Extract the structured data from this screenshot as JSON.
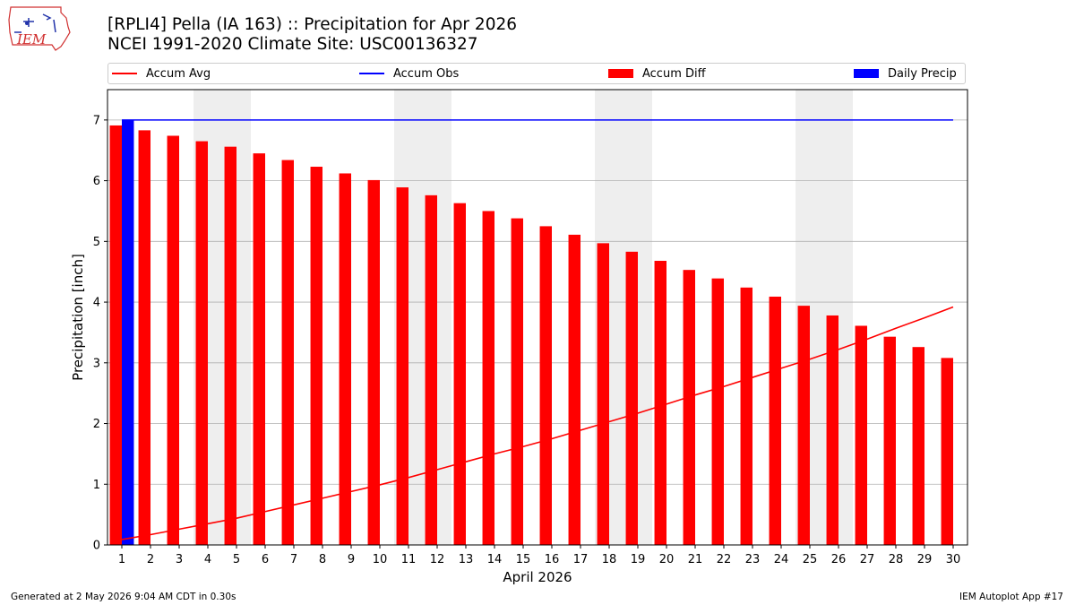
{
  "title_line1": "[RPLI4] Pella (IA 163) :: Precipitation for Apr 2026",
  "title_line2": "NCEI 1991-2020 Climate Site: USC00136327",
  "logo_text": "IEM",
  "footer_left": "Generated at 2 May 2026 9:04 AM CDT in 0.30s",
  "footer_right": "IEM Autoplot App #17",
  "legend": [
    {
      "label": "Accum Avg",
      "color": "#ff0000",
      "kind": "line"
    },
    {
      "label": "Accum Obs",
      "color": "#0000ff",
      "kind": "line"
    },
    {
      "label": "Accum Diff",
      "color": "#ff0000",
      "kind": "box"
    },
    {
      "label": "Daily Precip",
      "color": "#0000ff",
      "kind": "box"
    }
  ],
  "chart_data": {
    "type": "bar",
    "xlabel": "April 2026",
    "ylabel": "Precipitation [inch]",
    "xlim": [
      0.5,
      30.5
    ],
    "ylim": [
      0,
      7.5
    ],
    "yticks": [
      0,
      1,
      2,
      3,
      4,
      5,
      6,
      7
    ],
    "grid": true,
    "legend_position": "top",
    "weekend_shading": [
      [
        3.5,
        5.5
      ],
      [
        10.5,
        12.5
      ],
      [
        17.5,
        19.5
      ],
      [
        24.5,
        26.5
      ]
    ],
    "shade_color": "#eeeeee",
    "days": [
      1,
      2,
      3,
      4,
      5,
      6,
      7,
      8,
      9,
      10,
      11,
      12,
      13,
      14,
      15,
      16,
      17,
      18,
      19,
      20,
      21,
      22,
      23,
      24,
      25,
      26,
      27,
      28,
      29,
      30
    ],
    "series": [
      {
        "name": "Accum Avg",
        "kind": "line",
        "color": "#ff0000",
        "values": [
          0.09,
          0.17,
          0.26,
          0.35,
          0.44,
          0.55,
          0.66,
          0.77,
          0.88,
          0.99,
          1.11,
          1.24,
          1.37,
          1.5,
          1.62,
          1.75,
          1.89,
          2.03,
          2.17,
          2.32,
          2.47,
          2.61,
          2.76,
          2.91,
          3.06,
          3.22,
          3.39,
          3.57,
          3.74,
          3.92
        ]
      },
      {
        "name": "Accum Obs",
        "kind": "line",
        "color": "#0000ff",
        "values": [
          7.0,
          7.0,
          7.0,
          7.0,
          7.0,
          7.0,
          7.0,
          7.0,
          7.0,
          7.0,
          7.0,
          7.0,
          7.0,
          7.0,
          7.0,
          7.0,
          7.0,
          7.0,
          7.0,
          7.0,
          7.0,
          7.0,
          7.0,
          7.0,
          7.0,
          7.0,
          7.0,
          7.0,
          7.0,
          7.0
        ]
      },
      {
        "name": "Accum Diff",
        "kind": "bar",
        "color": "#ff0000",
        "values": [
          6.91,
          6.83,
          6.74,
          6.65,
          6.56,
          6.45,
          6.34,
          6.23,
          6.12,
          6.01,
          5.89,
          5.76,
          5.63,
          5.5,
          5.38,
          5.25,
          5.11,
          4.97,
          4.83,
          4.68,
          4.53,
          4.39,
          4.24,
          4.09,
          3.94,
          3.78,
          3.61,
          3.43,
          3.26,
          3.08
        ]
      },
      {
        "name": "Daily Precip",
        "kind": "bar",
        "color": "#0000ff",
        "values": [
          7.0,
          0,
          0,
          0,
          0,
          0,
          0,
          0,
          0,
          0,
          0,
          0,
          0,
          0,
          0,
          0,
          0,
          0,
          0,
          0,
          0,
          0,
          0,
          0,
          0,
          0,
          0,
          0,
          0,
          0
        ]
      }
    ]
  }
}
